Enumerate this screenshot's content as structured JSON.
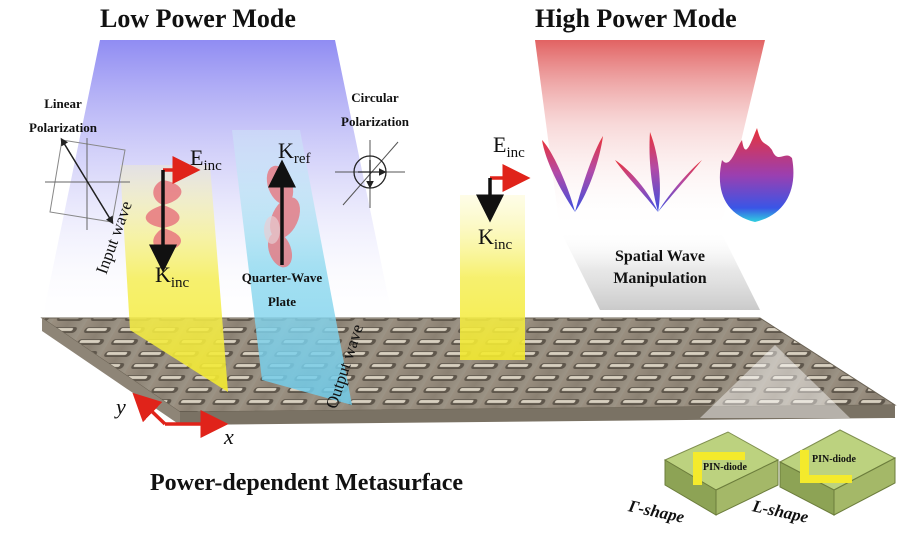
{
  "titles": {
    "low_power": "Low Power Mode",
    "high_power": "High Power Mode",
    "metasurface": "Power-dependent Metasurface"
  },
  "labels": {
    "linear_pol_1": "Linear",
    "linear_pol_2": "Polarization",
    "circular_pol_1": "Circular",
    "circular_pol_2": "Polarization",
    "quarter_wave_1": "Quarter-Wave",
    "quarter_wave_2": "Plate",
    "input_wave": "Input wave",
    "output_wave": "Output wave",
    "spatial_1": "Spatial Wave",
    "spatial_2": "Manipulation",
    "pin_diode_1": "PIN-diode",
    "pin_diode_2": "PIN-diode",
    "gamma_shape": "Γ-shape",
    "l_shape": "L-shape"
  },
  "symbols": {
    "e_main": "E",
    "e_sub": "inc",
    "k_main": "K",
    "k_sub": "inc",
    "kref_main": "K",
    "kref_sub": "ref",
    "e2_main": "E",
    "e2_sub": "inc",
    "k2_main": "K",
    "k2_sub": "inc",
    "axis_x": "x",
    "axis_y": "y"
  },
  "colors": {
    "low_beam": "#8f8ff0",
    "high_beam": "#e66a6a",
    "wave_yellow": "#f7f04a",
    "plate_cyan": "#7fd6ee",
    "arrow_red": "#e0231a",
    "unit_cell_green": "#a9c267"
  }
}
